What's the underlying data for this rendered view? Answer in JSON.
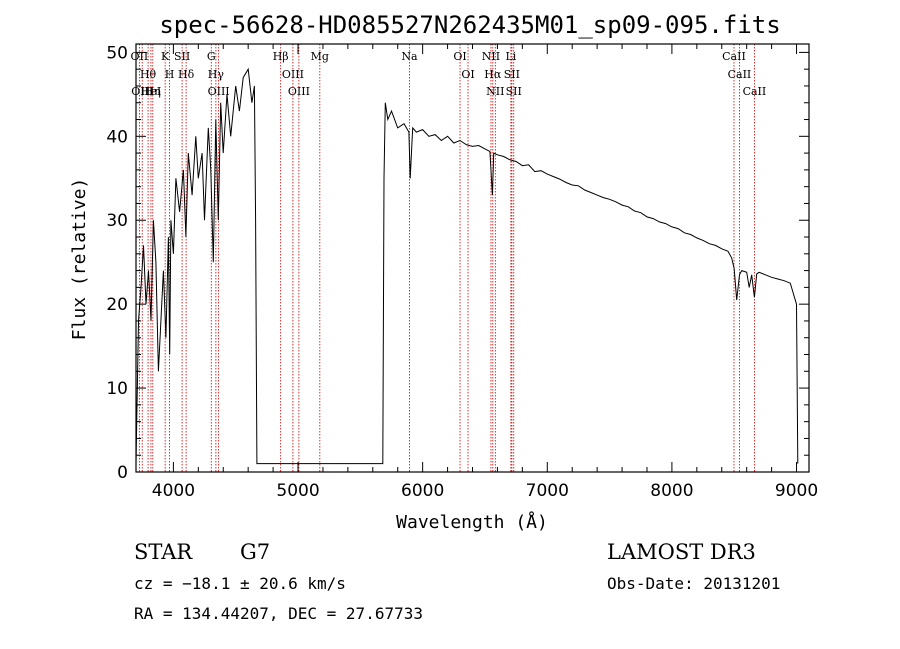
{
  "chart_data": {
    "type": "line",
    "title": "spec-56628-HD085527N262435M01_sp09-095.fits",
    "xlabel": "Wavelength (Å)",
    "ylabel": "Flux (relative)",
    "xlim": [
      3700,
      9100
    ],
    "ylim": [
      0,
      51
    ],
    "x_ticks": [
      4000,
      5000,
      6000,
      7000,
      8000,
      9000
    ],
    "y_ticks": [
      0,
      10,
      20,
      30,
      40,
      50
    ],
    "grid": false,
    "series": [
      {
        "color": "#000000",
        "x": [
          3700,
          3720,
          3740,
          3760,
          3780,
          3800,
          3820,
          3840,
          3860,
          3880,
          3900,
          3920,
          3940,
          3960,
          3970,
          3980,
          4000,
          4020,
          4050,
          4080,
          4100,
          4120,
          4150,
          4180,
          4200,
          4230,
          4250,
          4280,
          4300,
          4320,
          4340,
          4360,
          4380,
          4400,
          4430,
          4460,
          4500,
          4530,
          4560,
          4600,
          4630,
          4650,
          4660,
          4670,
          5680,
          5690,
          5700,
          5720,
          5750,
          5800,
          5850,
          5890,
          5900,
          5920,
          5950,
          6000,
          6050,
          6100,
          6150,
          6200,
          6250,
          6300,
          6350,
          6400,
          6450,
          6500,
          6540,
          6560,
          6570,
          6600,
          6650,
          6700,
          6750,
          6800,
          6850,
          6900,
          6950,
          7000,
          7050,
          7100,
          7150,
          7200,
          7250,
          7300,
          7350,
          7400,
          7450,
          7500,
          7550,
          7600,
          7650,
          7700,
          7750,
          7800,
          7850,
          7900,
          7950,
          8000,
          8050,
          8100,
          8150,
          8200,
          8250,
          8300,
          8350,
          8400,
          8450,
          8480,
          8500,
          8520,
          8542,
          8560,
          8600,
          8620,
          8640,
          8662,
          8680,
          8700,
          8750,
          8800,
          8850,
          8900,
          8950,
          9000,
          9010
        ],
        "y": [
          1,
          18,
          22,
          27,
          20,
          24,
          18,
          30,
          25,
          12,
          18,
          24,
          16,
          28,
          14,
          30,
          26,
          35,
          31,
          36,
          28,
          38,
          33,
          40,
          35,
          38,
          30,
          41,
          36,
          25,
          42,
          30,
          44,
          38,
          45,
          40,
          46,
          43,
          47,
          48,
          44,
          46,
          30,
          1,
          1,
          35,
          44,
          42,
          43,
          41,
          41.5,
          40.5,
          35,
          41,
          40.5,
          40.8,
          40,
          40.2,
          39.5,
          40,
          39.2,
          39.5,
          39,
          38.8,
          38.9,
          38.5,
          38.2,
          33,
          38,
          37.8,
          37.6,
          37.2,
          37,
          36.5,
          36.6,
          35.8,
          35.9,
          35.5,
          35.2,
          34.9,
          34.5,
          34.2,
          34.1,
          33.6,
          33.3,
          33,
          32.7,
          32.5,
          32.2,
          31.8,
          31.6,
          31.1,
          30.9,
          30.4,
          30.2,
          29.8,
          29.6,
          29.2,
          29,
          28.5,
          28.3,
          27.9,
          27.6,
          27.2,
          27,
          26.6,
          26.3,
          25.5,
          24.2,
          20.5,
          23.5,
          24,
          23.8,
          22,
          23.5,
          20.8,
          23.6,
          23.8,
          23.5,
          23.2,
          23,
          22.8,
          22.5,
          20,
          1
        ]
      }
    ],
    "line_marks": [
      {
        "label": "OII",
        "wavelength": 3727
      },
      {
        "label": "Hθ",
        "wavelength": 3797
      },
      {
        "label": "OIII",
        "wavelength": 3750
      },
      {
        "label": "HeI",
        "wavelength": 3820
      },
      {
        "label": "Hη",
        "wavelength": 3835
      },
      {
        "label": "K",
        "wavelength": 3934
      },
      {
        "label": "H",
        "wavelength": 3969
      },
      {
        "label": "SII",
        "wavelength": 4070
      },
      {
        "label": "Hδ",
        "wavelength": 4102
      },
      {
        "label": "G",
        "wavelength": 4304
      },
      {
        "label": "Hγ",
        "wavelength": 4341
      },
      {
        "label": "OIII",
        "wavelength": 4363
      },
      {
        "label": "Hβ",
        "wavelength": 4861
      },
      {
        "label": "OIII",
        "wavelength": 4959
      },
      {
        "label": "OIII",
        "wavelength": 5007
      },
      {
        "label": "Mg",
        "wavelength": 5175
      },
      {
        "label": "Na",
        "wavelength": 5894
      },
      {
        "label": "OI",
        "wavelength": 6300
      },
      {
        "label": "OI",
        "wavelength": 6364
      },
      {
        "label": "NII",
        "wavelength": 6548
      },
      {
        "label": "Hα",
        "wavelength": 6563
      },
      {
        "label": "NII",
        "wavelength": 6583
      },
      {
        "label": "Li",
        "wavelength": 6708
      },
      {
        "label": "SII",
        "wavelength": 6716
      },
      {
        "label": "SII",
        "wavelength": 6731
      },
      {
        "label": "CaII",
        "wavelength": 8498
      },
      {
        "label": "CaII",
        "wavelength": 8542
      },
      {
        "label": "CaII",
        "wavelength": 8662
      }
    ]
  },
  "info": {
    "object_class": "STAR",
    "subclass": "G7",
    "survey": "LAMOST DR3",
    "cz_text": "cz = −18.1 ± 20.6 km/s",
    "obs_date_text": "Obs-Date: 20131201",
    "radec_text": "RA = 134.44207, DEC =  27.67733"
  },
  "colors": {
    "spectrum": "#000000",
    "line_marker": "#cc0000"
  }
}
